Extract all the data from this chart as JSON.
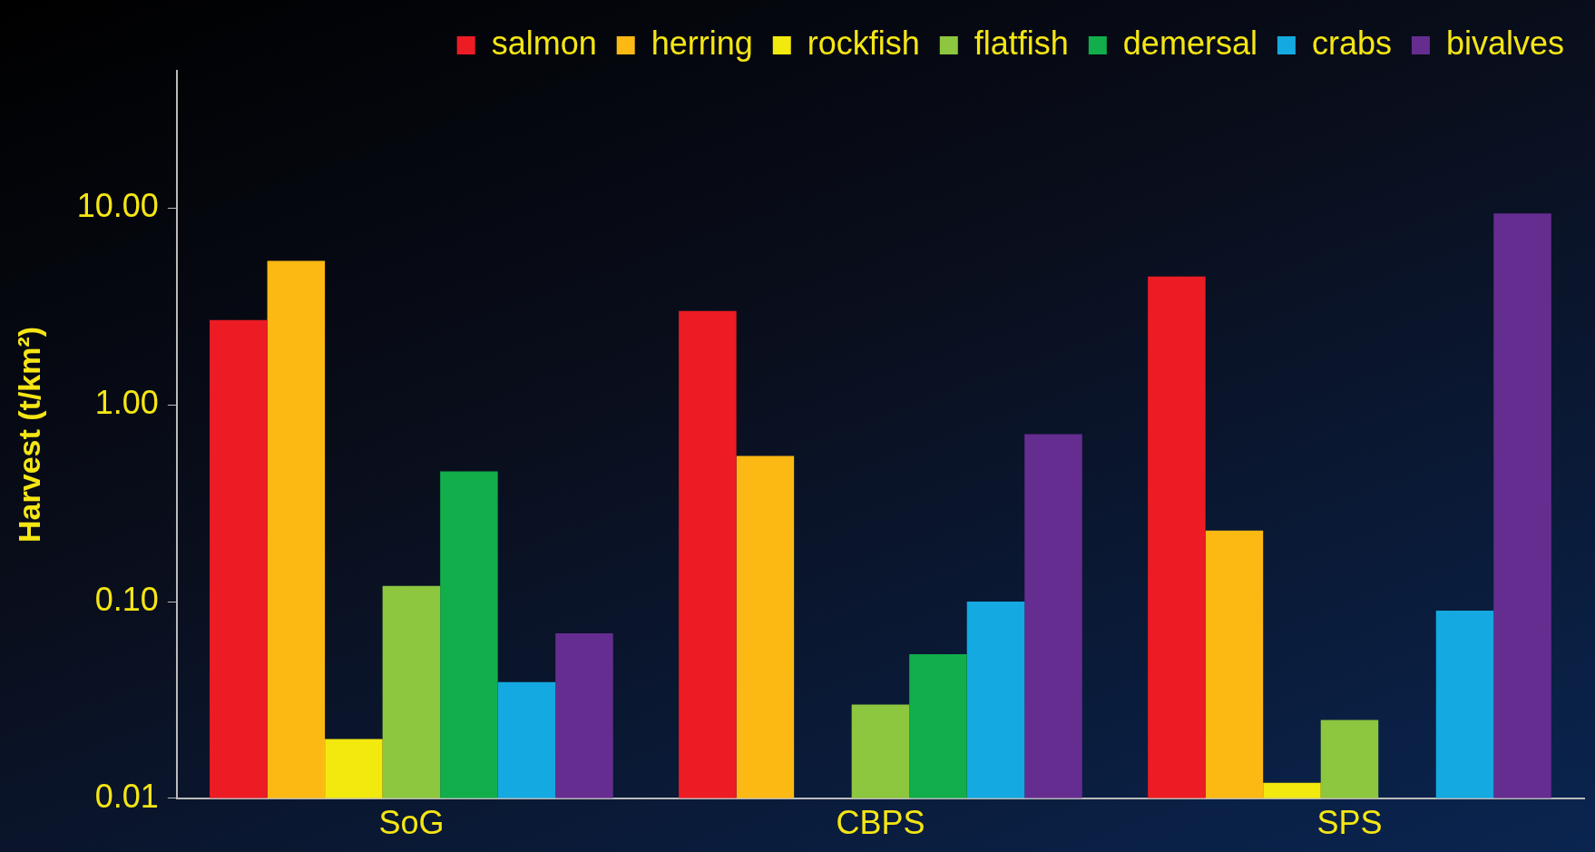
{
  "chart_data": {
    "type": "bar",
    "ylabel": "Harvest (t/km²)",
    "categories": [
      "SoG",
      "CBPS",
      "SPS"
    ],
    "log": true,
    "ylim": [
      0.01,
      50
    ],
    "yticks": [
      {
        "value": 0.01,
        "label": "0.01"
      },
      {
        "value": 0.1,
        "label": "0.10"
      },
      {
        "value": 1,
        "label": "1.00"
      },
      {
        "value": 10,
        "label": "10.00"
      }
    ],
    "legend": "top right",
    "series": [
      {
        "name": "salmon",
        "color": "#ed1c24",
        "values": [
          2.7,
          3.0,
          4.5
        ]
      },
      {
        "name": "herring",
        "color": "#fdb913",
        "values": [
          5.4,
          0.55,
          0.23
        ]
      },
      {
        "name": "rockfish",
        "color": "#f2e90f",
        "values": [
          0.02,
          null,
          0.012
        ]
      },
      {
        "name": "flatfish",
        "color": "#8dc63f",
        "values": [
          0.12,
          0.03,
          0.025
        ]
      },
      {
        "name": "demersal",
        "color": "#11ae4b",
        "values": [
          0.46,
          0.054,
          null
        ]
      },
      {
        "name": "crabs",
        "color": "#14a9e0",
        "values": [
          0.039,
          0.1,
          0.09
        ]
      },
      {
        "name": "bivalves",
        "color": "#662d91",
        "values": [
          0.069,
          0.71,
          9.4
        ]
      }
    ]
  }
}
